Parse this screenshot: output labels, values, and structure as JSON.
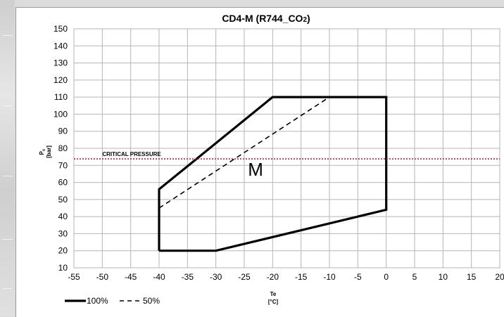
{
  "chart_data": {
    "type": "line",
    "title": "CD4-M (R744_CO",
    "title_sub": "2",
    "title_close": ")",
    "xlabel": "Te",
    "xunit": "[°C]",
    "ylabel": "P",
    "ylabel_sub": "c",
    "yunit": "[bar]",
    "xlim": [
      -55,
      20
    ],
    "ylim": [
      10,
      150
    ],
    "x_ticks": [
      -55,
      -50,
      -45,
      -40,
      -35,
      -30,
      -25,
      -20,
      -15,
      -10,
      -5,
      0,
      5,
      10,
      15,
      20
    ],
    "y_ticks": [
      10,
      20,
      30,
      40,
      50,
      60,
      70,
      80,
      90,
      100,
      110,
      120,
      130,
      140,
      150
    ],
    "grid": true,
    "legend_position": "bottom-left",
    "series": [
      {
        "name": "100%",
        "style": "solid",
        "color": "#000000",
        "x": [
          -40,
          -30,
          0,
          0,
          -20,
          -40,
          -40
        ],
        "y": [
          20,
          20,
          44,
          110,
          110,
          56,
          20
        ]
      },
      {
        "name": "50%",
        "style": "dashed",
        "color": "#000000",
        "x": [
          -40,
          -10
        ],
        "y": [
          45,
          110
        ]
      }
    ],
    "reference_line": {
      "label": "CRITICAL PRESSURE",
      "y": 73.8,
      "color": "#e0192a"
    },
    "region_label": {
      "text": "M",
      "x": -23,
      "y": 64
    }
  }
}
